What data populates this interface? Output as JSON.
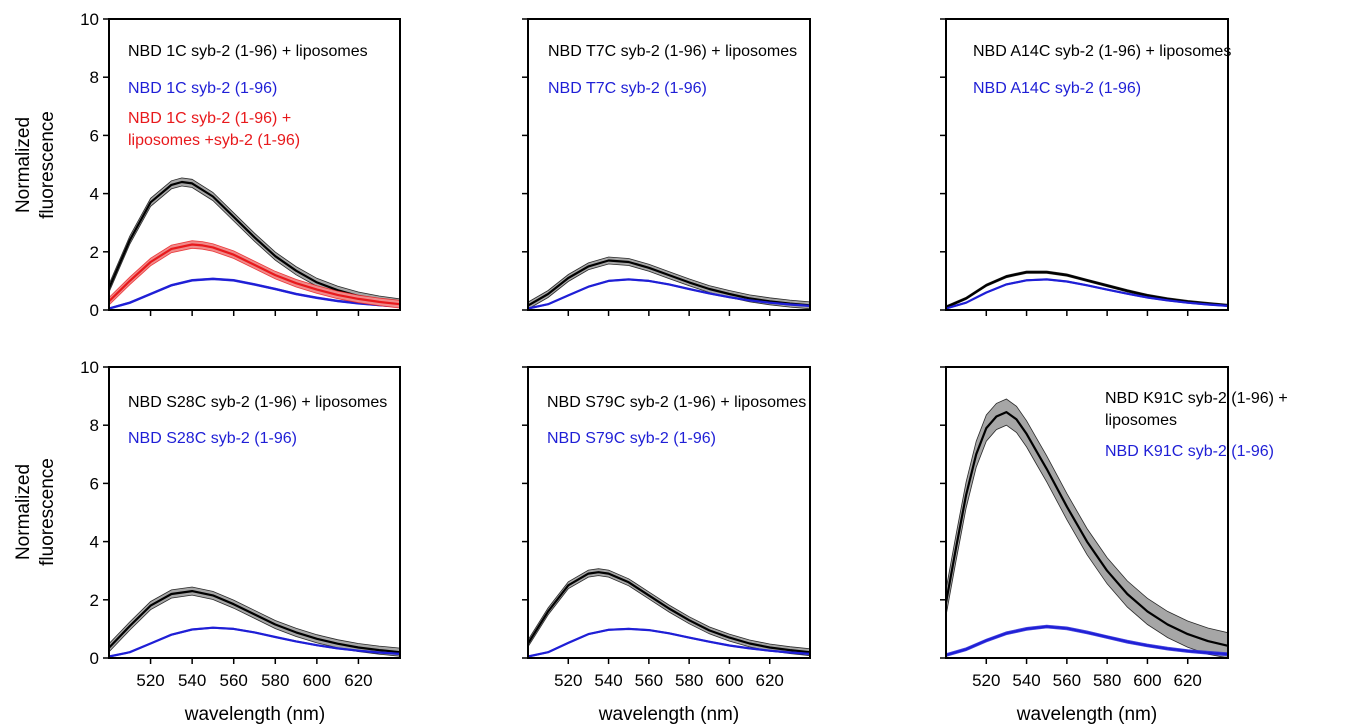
{
  "figure": {
    "ylabel_line1": "Normalized",
    "ylabel_line2": "fluorescence",
    "xlabel": "wavelength (nm)"
  },
  "colors": {
    "black": "#000000",
    "blue": "#1f1fd6",
    "red": "#e8191c",
    "grey_band": "#a6a6a6",
    "pink_band": "#f08a8a"
  },
  "chart_data": [
    {
      "type": "line",
      "xlim": [
        500,
        640
      ],
      "ylim": [
        0,
        10
      ],
      "x_ticks": [
        520,
        540,
        560,
        580,
        600,
        620
      ],
      "y_ticks": [
        0,
        2,
        4,
        6,
        8,
        10
      ],
      "xlabel": "wavelength (nm)",
      "ylabel": "Normalized fluorescence",
      "series": [
        {
          "name": "NBD 1C syb-2 (1-96) + liposomes",
          "color": "#000000",
          "band": 0.14,
          "x": [
            500,
            510,
            520,
            530,
            535,
            540,
            550,
            560,
            570,
            580,
            590,
            600,
            610,
            620,
            630,
            640
          ],
          "y": [
            0.75,
            2.4,
            3.7,
            4.3,
            4.4,
            4.35,
            3.9,
            3.2,
            2.5,
            1.85,
            1.35,
            0.95,
            0.68,
            0.48,
            0.34,
            0.24
          ]
        },
        {
          "name": "NBD 1C syb-2 (1-96)",
          "color": "#1f1fd6",
          "band": 0.03,
          "x": [
            500,
            510,
            520,
            530,
            540,
            550,
            560,
            570,
            580,
            590,
            600,
            610,
            620,
            630,
            640
          ],
          "y": [
            0.05,
            0.25,
            0.55,
            0.85,
            1.02,
            1.07,
            1.02,
            0.88,
            0.72,
            0.55,
            0.42,
            0.31,
            0.23,
            0.17,
            0.12
          ]
        },
        {
          "name_line1": "NBD 1C syb-2 (1-96) +",
          "name_line2": "liposomes +syb-2 (1-96)",
          "name": "NBD 1C syb-2 (1-96) + liposomes +syb-2 (1-96)",
          "color": "#e8191c",
          "band": 0.13,
          "x": [
            500,
            510,
            520,
            530,
            540,
            545,
            550,
            560,
            570,
            580,
            590,
            600,
            610,
            620,
            630,
            640
          ],
          "y": [
            0.3,
            1.0,
            1.65,
            2.1,
            2.25,
            2.22,
            2.15,
            1.9,
            1.55,
            1.2,
            0.92,
            0.7,
            0.52,
            0.38,
            0.28,
            0.2
          ]
        }
      ]
    },
    {
      "type": "line",
      "xlim": [
        500,
        640
      ],
      "ylim": [
        0,
        10
      ],
      "x_ticks": [
        520,
        540,
        560,
        580,
        600,
        620
      ],
      "y_ticks": [
        0,
        2,
        4,
        6,
        8,
        10
      ],
      "series": [
        {
          "name": "NBD T7C syb-2 (1-96) + liposomes",
          "color": "#000000",
          "band": 0.12,
          "x": [
            500,
            510,
            520,
            530,
            540,
            550,
            560,
            570,
            580,
            590,
            600,
            610,
            620,
            630,
            640
          ],
          "y": [
            0.15,
            0.55,
            1.1,
            1.5,
            1.7,
            1.65,
            1.45,
            1.2,
            0.95,
            0.72,
            0.55,
            0.4,
            0.3,
            0.22,
            0.16
          ]
        },
        {
          "name": "NBD T7C syb-2 (1-96)",
          "color": "#1f1fd6",
          "band": 0.02,
          "x": [
            500,
            510,
            520,
            530,
            540,
            550,
            560,
            570,
            580,
            590,
            600,
            610,
            620,
            630,
            640
          ],
          "y": [
            0.05,
            0.2,
            0.5,
            0.8,
            1.0,
            1.05,
            1.0,
            0.88,
            0.72,
            0.57,
            0.44,
            0.33,
            0.25,
            0.19,
            0.14
          ]
        }
      ]
    },
    {
      "type": "line",
      "xlim": [
        500,
        640
      ],
      "ylim": [
        0,
        10
      ],
      "x_ticks": [
        520,
        540,
        560,
        580,
        600,
        620
      ],
      "y_ticks": [
        0,
        2,
        4,
        6,
        8,
        10
      ],
      "series": [
        {
          "name": "NBD A14C syb-2 (1-96) + liposomes",
          "color": "#000000",
          "band": 0.04,
          "x": [
            500,
            510,
            520,
            530,
            540,
            550,
            560,
            570,
            580,
            590,
            600,
            610,
            620,
            630,
            640
          ],
          "y": [
            0.1,
            0.4,
            0.85,
            1.15,
            1.3,
            1.3,
            1.2,
            1.02,
            0.84,
            0.66,
            0.5,
            0.38,
            0.29,
            0.22,
            0.16
          ]
        },
        {
          "name": "NBD A14C syb-2 (1-96)",
          "color": "#1f1fd6",
          "band": 0.02,
          "x": [
            500,
            510,
            520,
            530,
            540,
            550,
            560,
            570,
            580,
            590,
            600,
            610,
            620,
            630,
            640
          ],
          "y": [
            0.05,
            0.25,
            0.6,
            0.88,
            1.02,
            1.05,
            0.98,
            0.85,
            0.7,
            0.56,
            0.43,
            0.33,
            0.25,
            0.19,
            0.14
          ]
        }
      ]
    },
    {
      "type": "line",
      "xlim": [
        500,
        640
      ],
      "ylim": [
        0,
        10
      ],
      "x_ticks": [
        520,
        540,
        560,
        580,
        600,
        620
      ],
      "y_ticks": [
        0,
        2,
        4,
        6,
        8,
        10
      ],
      "series": [
        {
          "name": "NBD S28C syb-2 (1-96) + liposomes",
          "color": "#000000",
          "band": 0.14,
          "x": [
            500,
            510,
            520,
            530,
            540,
            550,
            560,
            570,
            580,
            590,
            600,
            610,
            620,
            630,
            640
          ],
          "y": [
            0.35,
            1.1,
            1.8,
            2.2,
            2.3,
            2.15,
            1.85,
            1.5,
            1.15,
            0.88,
            0.66,
            0.49,
            0.36,
            0.27,
            0.2
          ]
        },
        {
          "name": "NBD S28C syb-2 (1-96)",
          "color": "#1f1fd6",
          "band": 0.02,
          "x": [
            500,
            510,
            520,
            530,
            540,
            550,
            560,
            570,
            580,
            590,
            600,
            610,
            620,
            630,
            640
          ],
          "y": [
            0.05,
            0.2,
            0.5,
            0.8,
            0.98,
            1.04,
            1.0,
            0.88,
            0.72,
            0.57,
            0.44,
            0.33,
            0.25,
            0.19,
            0.14
          ]
        }
      ]
    },
    {
      "type": "line",
      "xlim": [
        500,
        640
      ],
      "ylim": [
        0,
        10
      ],
      "x_ticks": [
        520,
        540,
        560,
        580,
        600,
        620
      ],
      "y_ticks": [
        0,
        2,
        4,
        6,
        8,
        10
      ],
      "series": [
        {
          "name": "NBD S79C syb-2 (1-96) + liposomes",
          "color": "#000000",
          "band": 0.12,
          "x": [
            500,
            510,
            520,
            530,
            535,
            540,
            550,
            560,
            570,
            580,
            590,
            600,
            610,
            620,
            630,
            640
          ],
          "y": [
            0.5,
            1.6,
            2.5,
            2.9,
            2.95,
            2.9,
            2.6,
            2.15,
            1.7,
            1.3,
            0.95,
            0.7,
            0.5,
            0.36,
            0.27,
            0.2
          ]
        },
        {
          "name": "NBD S79C syb-2 (1-96)",
          "color": "#1f1fd6",
          "band": 0.02,
          "x": [
            500,
            510,
            520,
            530,
            540,
            550,
            560,
            570,
            580,
            590,
            600,
            610,
            620,
            630,
            640
          ],
          "y": [
            0.05,
            0.2,
            0.52,
            0.82,
            0.97,
            1.0,
            0.96,
            0.85,
            0.7,
            0.56,
            0.43,
            0.33,
            0.25,
            0.19,
            0.14
          ]
        }
      ]
    },
    {
      "type": "line",
      "xlim": [
        500,
        640
      ],
      "ylim": [
        0,
        10
      ],
      "x_ticks": [
        520,
        540,
        560,
        580,
        600,
        620
      ],
      "y_ticks": [
        0,
        2,
        4,
        6,
        8,
        10
      ],
      "series": [
        {
          "name_line1": "NBD K91C syb-2 (1-96) +",
          "name_line2": "liposomes",
          "name": "NBD K91C syb-2 (1-96) + liposomes",
          "color": "#000000",
          "band": 0.45,
          "x": [
            500,
            505,
            510,
            515,
            520,
            525,
            530,
            535,
            540,
            545,
            550,
            560,
            570,
            580,
            590,
            600,
            610,
            620,
            630,
            640
          ],
          "y": [
            1.9,
            3.8,
            5.6,
            7.0,
            7.9,
            8.3,
            8.45,
            8.2,
            7.7,
            7.1,
            6.5,
            5.2,
            4.0,
            3.0,
            2.2,
            1.6,
            1.15,
            0.82,
            0.58,
            0.42
          ]
        },
        {
          "name": "NBD K91C syb-2 (1-96)",
          "color": "#1f1fd6",
          "band": 0.05,
          "x": [
            500,
            510,
            520,
            530,
            540,
            550,
            560,
            570,
            580,
            590,
            600,
            610,
            620,
            630,
            640
          ],
          "y": [
            0.1,
            0.3,
            0.6,
            0.85,
            1.0,
            1.08,
            1.02,
            0.88,
            0.72,
            0.56,
            0.43,
            0.32,
            0.24,
            0.18,
            0.13
          ]
        }
      ]
    }
  ]
}
